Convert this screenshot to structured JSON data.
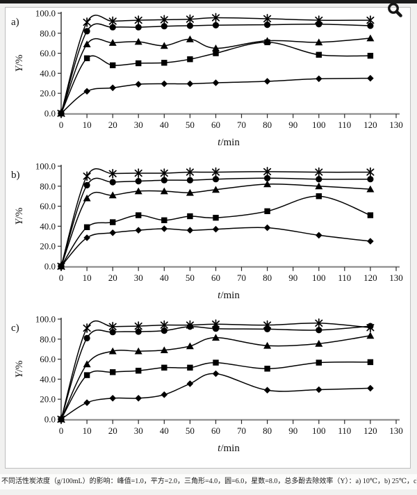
{
  "colors": {
    "series": "#000000",
    "background": "#f1f1f0",
    "panel": "#ffffff",
    "x_axis": "#8f8f8f",
    "top_bar": "#1b1b1b"
  },
  "caption": {
    "text": "不同活性炭浓度（g/100mL）的影响：峰值=1.0，平方=2.0，三角形=4.0，圆=6.0，星数=8.0，总多酚去除效率（Y）：a) 10℃，b) 25℃，c) 40℃"
  },
  "chart_data": [
    {
      "type": "line",
      "panel_label": "a)",
      "temperature": "10℃",
      "xlabel": "t/min",
      "ylabel": "Y/%",
      "xlim": [
        0,
        130
      ],
      "ylim": [
        0,
        100
      ],
      "x_ticks": [
        0,
        10,
        20,
        30,
        40,
        50,
        60,
        70,
        80,
        90,
        100,
        110,
        120,
        130
      ],
      "y_ticks": [
        "0.0",
        "20.0",
        "40.0",
        "60.0",
        "80.0",
        "100.0"
      ],
      "grid": "off",
      "legend": "none",
      "x": [
        0,
        10,
        20,
        30,
        40,
        50,
        60,
        80,
        100,
        120
      ],
      "series": [
        {
          "name": "峰值 1.0 g/100mL",
          "marker": "diamond",
          "values": [
            0,
            22,
            25.5,
            29,
            29.5,
            29.5,
            30.5,
            32,
            34.5,
            35
          ]
        },
        {
          "name": "平方 2.0 g/100mL",
          "marker": "square",
          "values": [
            0,
            55,
            48,
            50,
            50.5,
            54,
            60,
            71,
            58.5,
            57.5
          ]
        },
        {
          "name": "三角形 4.0 g/100mL",
          "marker": "triangle",
          "values": [
            0,
            69,
            70.5,
            71.5,
            67.5,
            74,
            65,
            72.5,
            71,
            75
          ]
        },
        {
          "name": "圆 6.0 g/100mL",
          "marker": "circle",
          "values": [
            0,
            82,
            86,
            86,
            87,
            87.5,
            88,
            88.5,
            89,
            87.5
          ]
        },
        {
          "name": "星数 8.0 g/100mL",
          "marker": "star",
          "values": [
            0,
            91,
            92,
            93,
            93.5,
            94,
            95.5,
            94.5,
            93,
            93
          ]
        }
      ]
    },
    {
      "type": "line",
      "panel_label": "b)",
      "temperature": "25℃",
      "xlabel": "t/min",
      "ylabel": "Y/%",
      "xlim": [
        0,
        130
      ],
      "ylim": [
        0,
        100
      ],
      "x_ticks": [
        0,
        10,
        20,
        30,
        40,
        50,
        60,
        70,
        80,
        90,
        100,
        110,
        120,
        130
      ],
      "y_ticks": [
        "0.0",
        "20.0",
        "40.0",
        "60.0",
        "80.0",
        "100.0"
      ],
      "grid": "off",
      "legend": "none",
      "x": [
        0,
        10,
        20,
        30,
        40,
        50,
        60,
        80,
        100,
        120
      ],
      "series": [
        {
          "name": "峰值 1.0 g/100mL",
          "marker": "diamond",
          "values": [
            0,
            28.5,
            33.5,
            36,
            37.5,
            36,
            37,
            38.5,
            31,
            25
          ]
        },
        {
          "name": "平方 2.0 g/100mL",
          "marker": "square",
          "values": [
            0,
            39,
            44,
            51,
            46,
            50,
            48.5,
            55,
            70,
            51
          ]
        },
        {
          "name": "三角形 4.0 g/100mL",
          "marker": "triangle",
          "values": [
            0,
            68,
            71,
            75,
            75,
            73.5,
            76.5,
            82,
            80,
            77
          ]
        },
        {
          "name": "圆 6.0 g/100mL",
          "marker": "circle",
          "values": [
            0,
            81,
            84,
            85,
            86,
            86,
            87,
            88,
            87,
            87
          ]
        },
        {
          "name": "星数 8.0 g/100mL",
          "marker": "star",
          "values": [
            0,
            90,
            92.5,
            93,
            93,
            94,
            94,
            94.5,
            94,
            94
          ]
        }
      ]
    },
    {
      "type": "line",
      "panel_label": "c)",
      "temperature": "40℃",
      "xlabel": "t/min",
      "ylabel": "Y/%",
      "xlim": [
        0,
        130
      ],
      "ylim": [
        0,
        100
      ],
      "x_ticks": [
        0,
        10,
        20,
        30,
        40,
        50,
        60,
        70,
        80,
        90,
        100,
        110,
        120,
        130
      ],
      "y_ticks": [
        "0.0",
        "20.0",
        "40.0",
        "60.0",
        "80.0",
        "100.0"
      ],
      "grid": "off",
      "legend": "none",
      "x": [
        0,
        10,
        20,
        30,
        40,
        50,
        60,
        80,
        100,
        120
      ],
      "series": [
        {
          "name": "峰值 1.0 g/100mL",
          "marker": "diamond",
          "values": [
            0,
            16.5,
            21,
            21,
            24.5,
            35.5,
            45.5,
            29,
            29.5,
            31
          ]
        },
        {
          "name": "平方 2.0 g/100mL",
          "marker": "square",
          "values": [
            0,
            44,
            47,
            48.5,
            51.5,
            51.5,
            56.5,
            50.5,
            56.5,
            57
          ]
        },
        {
          "name": "三角形 4.0 g/100mL",
          "marker": "triangle",
          "values": [
            0,
            55,
            68,
            68,
            69,
            73,
            81.5,
            73.5,
            75.5,
            83.5
          ]
        },
        {
          "name": "圆 6.0 g/100mL",
          "marker": "circle",
          "values": [
            0,
            81,
            87,
            87.5,
            88.5,
            92.5,
            90.5,
            90,
            89,
            93
          ]
        },
        {
          "name": "星数 8.0 g/100mL",
          "marker": "star",
          "values": [
            0,
            91,
            92.5,
            93,
            94,
            94,
            95,
            94,
            96,
            91.5
          ]
        }
      ]
    }
  ]
}
